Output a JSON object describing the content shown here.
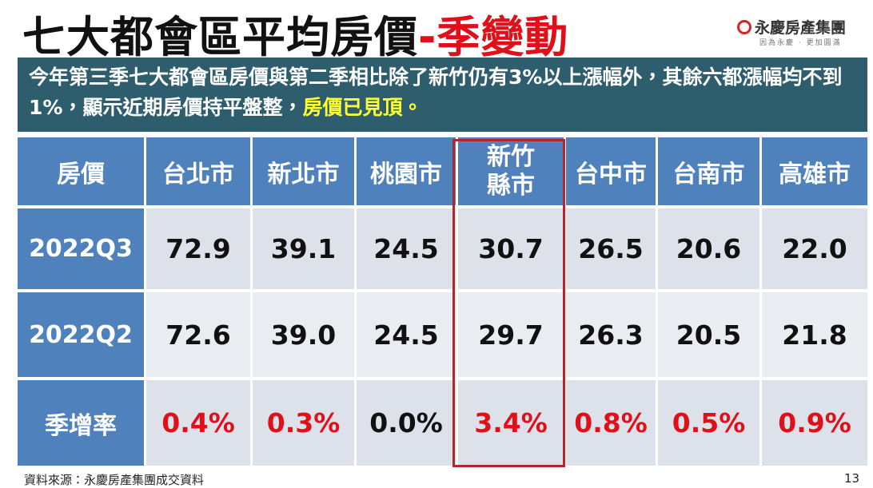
{
  "header": {
    "title": "七大都會區平均房價",
    "title_suffix": "-季變動",
    "logo": "永慶房產集團",
    "logo_tagline": "因為永慶 · 更加圓滿"
  },
  "banner": {
    "text": "今年第三季七大都會區房價與第二季相比除了新竹仍有3%以上漲幅外，其餘六都漲幅均不到1%，顯示近期房價持平盤整，",
    "highlight": "房價已見頂。"
  },
  "table": {
    "header": [
      "房價",
      "台北市",
      "新北市",
      "桃園市",
      "新竹縣市",
      "台中市",
      "台南市",
      "高雄市"
    ],
    "rows": [
      [
        "2022Q3",
        "72.9",
        "39.1",
        "24.5",
        "30.7",
        "26.5",
        "20.6",
        "22.0"
      ],
      [
        "2022Q2",
        "72.6",
        "39.0",
        "24.5",
        "29.7",
        "26.3",
        "20.5",
        "21.8"
      ],
      [
        "季增率",
        "0.4%",
        "0.3%",
        "0.0%",
        "3.4%",
        "0.8%",
        "0.5%",
        "0.9%"
      ]
    ]
  },
  "footer": {
    "source": "資料來源：永慶房產集團成交資料",
    "page": "13"
  }
}
